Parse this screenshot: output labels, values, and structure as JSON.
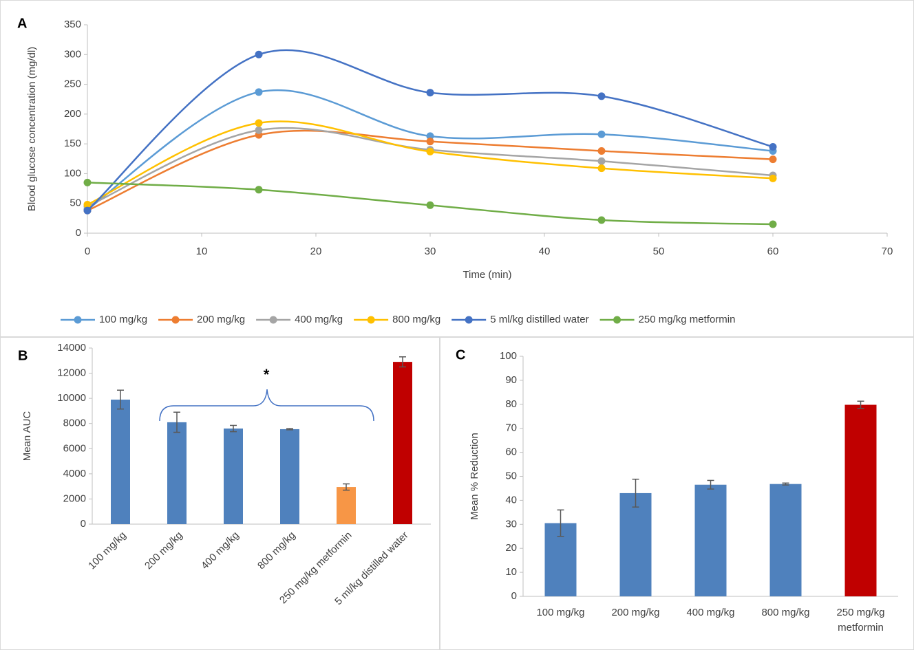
{
  "chart_data": [
    {
      "type": "line",
      "panel_label": "A",
      "x_label": "Time (min)",
      "y_label": "Blood glucose concentration (mg/dl)",
      "x": [
        0,
        15,
        30,
        45,
        60
      ],
      "series": [
        {
          "name": "100 mg/kg",
          "color": "#5b9bd5",
          "values": [
            40,
            237,
            163,
            166,
            138
          ]
        },
        {
          "name": "200 mg/kg",
          "color": "#ed7d31",
          "values": [
            38,
            165,
            154,
            138,
            124
          ]
        },
        {
          "name": "400 mg/kg",
          "color": "#a5a5a5",
          "values": [
            45,
            173,
            140,
            121,
            97
          ]
        },
        {
          "name": "800 mg/kg",
          "color": "#ffc000",
          "values": [
            48,
            185,
            137,
            109,
            92
          ]
        },
        {
          "name": "5 ml/kg distilled water",
          "color": "#4472c4",
          "values": [
            38,
            300,
            236,
            230,
            145
          ]
        },
        {
          "name": "250 mg/kg metformin",
          "color": "#70ad47",
          "values": [
            85,
            73,
            47,
            22,
            15
          ]
        }
      ],
      "xlim": [
        0,
        70
      ],
      "xticks": [
        0,
        10,
        20,
        30,
        40,
        50,
        60,
        70
      ],
      "ylim": [
        0,
        350
      ],
      "yticks": [
        0,
        50,
        100,
        150,
        200,
        250,
        300,
        350
      ],
      "grid": false,
      "legend": "bottom"
    },
    {
      "type": "bar",
      "panel_label": "B",
      "y_label": "Mean AUC",
      "annotation": "*",
      "categories": [
        "100 mg/kg",
        "200 mg/kg",
        "400 mg/kg",
        "800 mg/kg",
        "250 mg/kg metformin",
        "5 ml/kg distilled water"
      ],
      "values": [
        9900,
        8100,
        7600,
        7550,
        2950,
        12900
      ],
      "errors": [
        750,
        800,
        250,
        50,
        250,
        400
      ],
      "colors": [
        "#4f81bd",
        "#4f81bd",
        "#4f81bd",
        "#4f81bd",
        "#f79646",
        "#c00000"
      ],
      "ylim": [
        0,
        14000
      ],
      "yticks": [
        0,
        2000,
        4000,
        6000,
        8000,
        10000,
        12000,
        14000
      ],
      "grid": false,
      "rotate_labels": true
    },
    {
      "type": "bar",
      "panel_label": "C",
      "y_label": "Mean % Reduction",
      "categories": [
        "100 mg/kg",
        "200 mg/kg",
        "400 mg/kg",
        "800 mg/kg",
        "250 mg/kg metformin"
      ],
      "values": [
        30.5,
        43,
        46.5,
        46.8,
        79.8
      ],
      "errors": [
        5.5,
        5.8,
        1.8,
        0.4,
        1.5
      ],
      "colors": [
        "#4f81bd",
        "#4f81bd",
        "#4f81bd",
        "#4f81bd",
        "#c00000"
      ],
      "ylim": [
        0,
        100
      ],
      "yticks": [
        0,
        10,
        20,
        30,
        40,
        50,
        60,
        70,
        80,
        90,
        100
      ],
      "grid": false,
      "rotate_labels": false
    }
  ]
}
